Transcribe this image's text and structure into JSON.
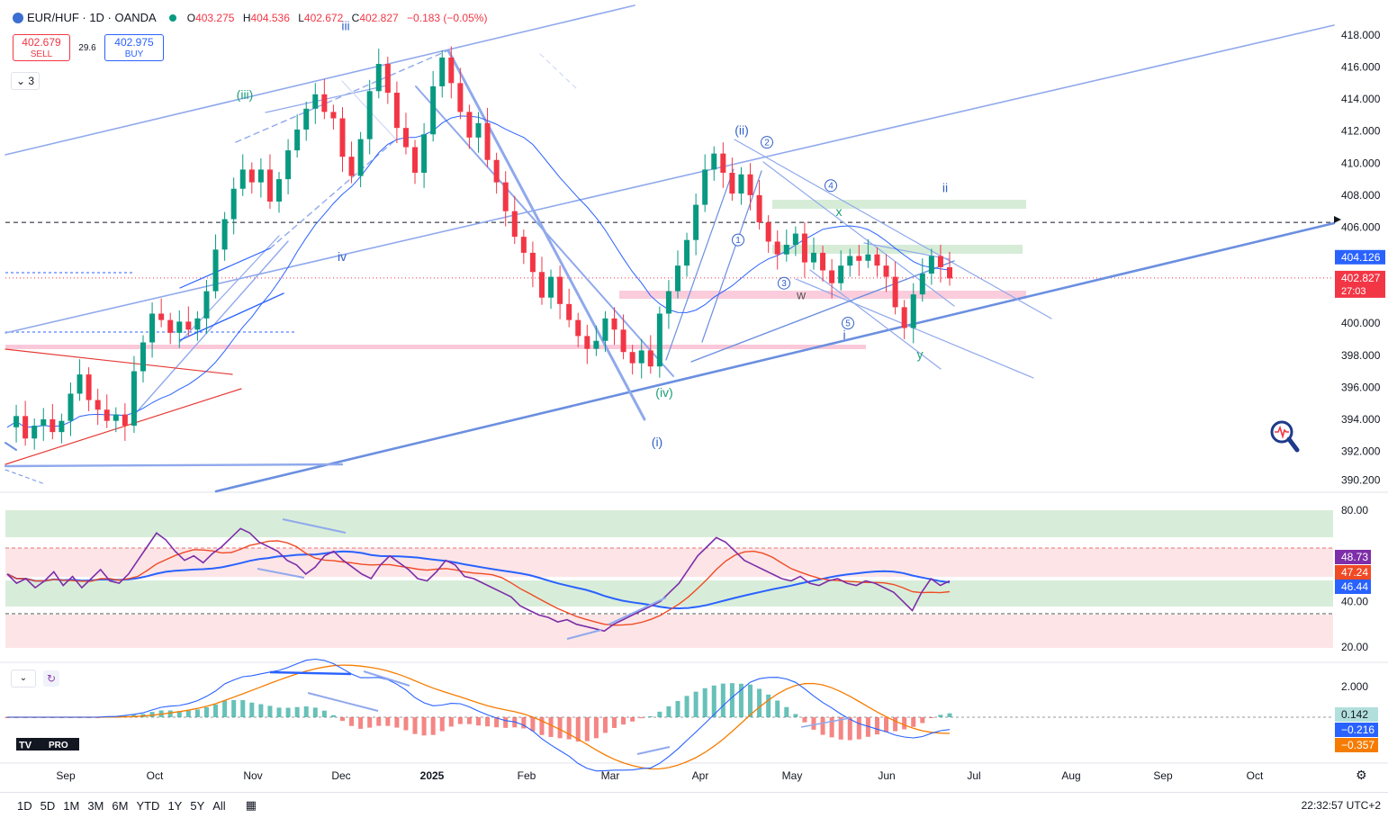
{
  "header": {
    "symbol": "EUR/HUF · 1D · OANDA",
    "ohlc": {
      "o_label": "O",
      "o": "403.275",
      "h_label": "H",
      "h": "404.536",
      "l_label": "L",
      "l": "402.672",
      "c_label": "C",
      "c": "402.827",
      "change": "−0.183 (−0.05%)"
    }
  },
  "trade": {
    "sell_price": "402.679",
    "sell_label": "SELL",
    "spread": "29.6",
    "buy_price": "402.975",
    "buy_label": "BUY"
  },
  "indicator_count": "3",
  "brand": "PRO",
  "timeframes": [
    "1D",
    "5D",
    "1M",
    "3M",
    "6M",
    "YTD",
    "1Y",
    "5Y",
    "All"
  ],
  "clock": "22:32:57 UTC+2",
  "colors": {
    "up": "#089981",
    "down": "#f23645",
    "line_blue": "#2962ff",
    "rsi": "#7e2ea8",
    "rsi_ma": "#f04a24",
    "macd": "#2962ff",
    "signal": "#f57c00"
  },
  "chart_data": {
    "type": "candlestick",
    "x_labels": [
      "Sep",
      "Oct",
      "Nov",
      "Dec",
      "2025",
      "Feb",
      "Mar",
      "Apr",
      "May",
      "Jun",
      "Jul",
      "Aug",
      "Sep",
      "Oct"
    ],
    "price_axis": {
      "ticks": [
        "418.000",
        "416.000",
        "414.000",
        "412.000",
        "410.000",
        "408.000",
        "406.000",
        "404.000",
        "402.000",
        "400.000",
        "398.000",
        "396.000",
        "394.000",
        "392.000",
        "390.200"
      ],
      "range": [
        390.2,
        418.7
      ]
    },
    "last_price": "402.827",
    "countdown": "27:03",
    "marked_price": "404.126",
    "dashed_level": 406.3,
    "price_path": [
      393.5,
      394.2,
      392.8,
      393.6,
      394.0,
      393.2,
      393.9,
      395.6,
      396.8,
      395.2,
      394.6,
      393.9,
      394.3,
      393.6,
      397.0,
      398.8,
      400.6,
      400.2,
      399.4,
      400.1,
      399.6,
      400.3,
      402.0,
      404.6,
      406.5,
      408.4,
      409.6,
      408.8,
      409.6,
      407.6,
      409.0,
      410.8,
      412.1,
      413.4,
      414.3,
      413.2,
      412.8,
      410.4,
      409.2,
      411.5,
      414.5,
      416.2,
      414.4,
      412.2,
      411.0,
      409.4,
      411.8,
      414.8,
      416.6,
      415.0,
      413.2,
      411.6,
      412.5,
      410.2,
      408.8,
      407.0,
      405.4,
      404.4,
      403.2,
      401.6,
      402.9,
      401.2,
      400.2,
      399.2,
      398.4,
      398.9,
      400.3,
      399.6,
      398.2,
      397.5,
      398.3,
      397.3,
      400.6,
      402.0,
      403.6,
      405.2,
      407.4,
      409.6,
      410.6,
      409.4,
      408.1,
      409.3,
      408.0,
      406.3,
      405.1,
      404.3,
      404.9,
      405.6,
      403.8,
      404.4,
      403.3,
      402.5,
      403.6,
      404.2,
      403.9,
      404.3,
      403.6,
      402.9,
      401.0,
      399.7,
      401.8,
      403.1,
      404.2,
      403.5,
      402.8
    ],
    "annotations": {
      "elliott": [
        {
          "label": "(iii)",
          "price": 414.0
        },
        {
          "label": "(ii)",
          "price": 411.8
        },
        {
          "label": "(iv)",
          "price": 395.4
        },
        {
          "label": "(i)",
          "price": 392.3
        },
        {
          "label": "iv",
          "price": 403.9
        },
        {
          "label": "iii",
          "price": 418.3
        },
        {
          "label": "ii",
          "price": 408.2
        },
        {
          "label": "i",
          "price": 399.0
        },
        {
          "label": "x",
          "price": 406.7
        },
        {
          "label": "w",
          "price": 401.5
        },
        {
          "label": "y",
          "price": 397.8
        }
      ],
      "circled": [
        {
          "label": "1",
          "price": 405.2
        },
        {
          "label": "2",
          "price": 411.3
        },
        {
          "label": "3",
          "price": 402.5
        },
        {
          "label": "4",
          "price": 408.6
        },
        {
          "label": "5",
          "price": 400.0
        }
      ]
    },
    "rsi": {
      "ticks": [
        "80.00",
        "40.00",
        "20.00"
      ],
      "range": [
        15,
        85
      ],
      "values": {
        "rsi": "48.73",
        "rsi_ma": "47.24",
        "ma_long": "46.44"
      },
      "series": [
        52,
        48,
        50,
        46,
        49,
        53,
        47,
        51,
        46,
        50,
        54,
        49,
        48,
        52,
        58,
        64,
        70,
        67,
        62,
        58,
        60,
        57,
        61,
        64,
        68,
        72,
        70,
        66,
        64,
        62,
        58,
        56,
        52,
        55,
        60,
        62,
        58,
        55,
        52,
        50,
        56,
        60,
        57,
        54,
        50,
        49,
        53,
        58,
        56,
        51,
        50,
        48,
        46,
        44,
        42,
        38,
        36,
        34,
        33,
        31,
        32,
        30,
        29,
        28,
        27,
        30,
        32,
        34,
        36,
        38,
        40,
        44,
        48,
        54,
        60,
        64,
        68,
        66,
        62,
        58,
        56,
        54,
        52,
        50,
        49,
        51,
        48,
        47,
        49,
        50,
        48,
        47,
        49,
        48,
        46,
        44,
        40,
        36,
        44,
        50,
        47,
        49
      ]
    },
    "macd": {
      "ticks": [
        "2.000"
      ],
      "range": [
        -1.3,
        2.6
      ],
      "values": {
        "histogram": "0.142",
        "macd": "−0.216",
        "signal": "−0.357"
      }
    }
  }
}
